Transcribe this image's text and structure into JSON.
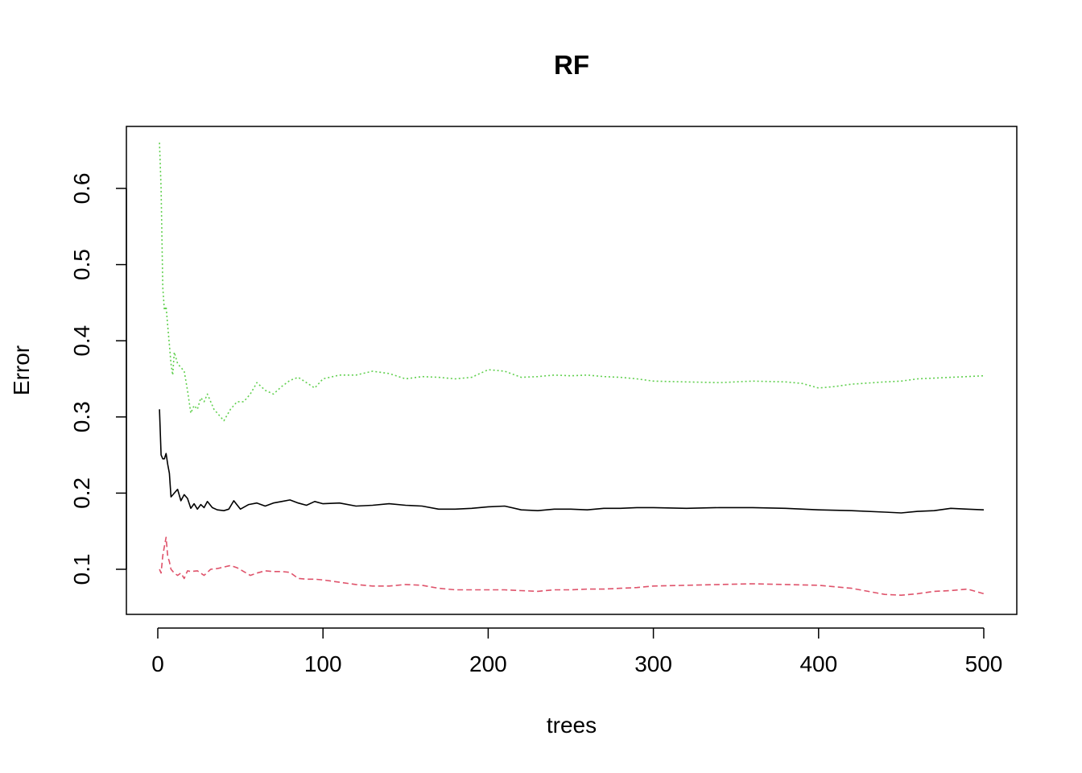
{
  "chart_data": {
    "type": "line",
    "title": "RF",
    "xlabel": "trees",
    "ylabel": "Error",
    "xlim": [
      0,
      500
    ],
    "ylim": [
      0.06,
      0.66
    ],
    "grid": false,
    "x_ticks": [
      "0",
      "100",
      "200",
      "300",
      "400",
      "500"
    ],
    "y_ticks": [
      "0.1",
      "0.2",
      "0.3",
      "0.4",
      "0.5",
      "0.6"
    ],
    "series": [
      {
        "key": "oob",
        "color": "#000000",
        "line_style": "solid",
        "points": [
          [
            1,
            0.31
          ],
          [
            2,
            0.25
          ],
          [
            3,
            0.245
          ],
          [
            4,
            0.245
          ],
          [
            5,
            0.252
          ],
          [
            6,
            0.238
          ],
          [
            7,
            0.226
          ],
          [
            8,
            0.195
          ],
          [
            10,
            0.2
          ],
          [
            12,
            0.205
          ],
          [
            14,
            0.19
          ],
          [
            16,
            0.198
          ],
          [
            18,
            0.193
          ],
          [
            20,
            0.18
          ],
          [
            22,
            0.186
          ],
          [
            24,
            0.179
          ],
          [
            26,
            0.185
          ],
          [
            28,
            0.181
          ],
          [
            30,
            0.189
          ],
          [
            33,
            0.181
          ],
          [
            36,
            0.178
          ],
          [
            40,
            0.177
          ],
          [
            43,
            0.179
          ],
          [
            46,
            0.19
          ],
          [
            50,
            0.179
          ],
          [
            55,
            0.185
          ],
          [
            60,
            0.187
          ],
          [
            65,
            0.183
          ],
          [
            70,
            0.187
          ],
          [
            75,
            0.189
          ],
          [
            80,
            0.191
          ],
          [
            85,
            0.187
          ],
          [
            90,
            0.184
          ],
          [
            95,
            0.189
          ],
          [
            100,
            0.186
          ],
          [
            110,
            0.187
          ],
          [
            120,
            0.183
          ],
          [
            130,
            0.184
          ],
          [
            140,
            0.186
          ],
          [
            150,
            0.184
          ],
          [
            160,
            0.183
          ],
          [
            170,
            0.179
          ],
          [
            180,
            0.179
          ],
          [
            190,
            0.18
          ],
          [
            200,
            0.182
          ],
          [
            210,
            0.183
          ],
          [
            220,
            0.178
          ],
          [
            230,
            0.177
          ],
          [
            240,
            0.179
          ],
          [
            250,
            0.179
          ],
          [
            260,
            0.178
          ],
          [
            270,
            0.18
          ],
          [
            280,
            0.18
          ],
          [
            290,
            0.181
          ],
          [
            300,
            0.181
          ],
          [
            320,
            0.18
          ],
          [
            340,
            0.181
          ],
          [
            360,
            0.181
          ],
          [
            380,
            0.18
          ],
          [
            400,
            0.178
          ],
          [
            420,
            0.177
          ],
          [
            440,
            0.175
          ],
          [
            450,
            0.174
          ],
          [
            460,
            0.176
          ],
          [
            470,
            0.177
          ],
          [
            480,
            0.18
          ],
          [
            490,
            0.179
          ],
          [
            500,
            0.178
          ]
        ]
      },
      {
        "key": "class1",
        "color": "#DF536B",
        "line_style": "dashed",
        "points": [
          [
            1,
            0.1
          ],
          [
            2,
            0.095
          ],
          [
            3,
            0.118
          ],
          [
            4,
            0.13
          ],
          [
            5,
            0.142
          ],
          [
            6,
            0.117
          ],
          [
            7,
            0.11
          ],
          [
            8,
            0.1
          ],
          [
            10,
            0.095
          ],
          [
            12,
            0.092
          ],
          [
            14,
            0.095
          ],
          [
            16,
            0.088
          ],
          [
            18,
            0.098
          ],
          [
            20,
            0.097
          ],
          [
            24,
            0.098
          ],
          [
            28,
            0.092
          ],
          [
            32,
            0.1
          ],
          [
            36,
            0.101
          ],
          [
            40,
            0.103
          ],
          [
            44,
            0.105
          ],
          [
            48,
            0.102
          ],
          [
            52,
            0.097
          ],
          [
            56,
            0.092
          ],
          [
            60,
            0.095
          ],
          [
            65,
            0.098
          ],
          [
            70,
            0.097
          ],
          [
            75,
            0.097
          ],
          [
            80,
            0.096
          ],
          [
            85,
            0.088
          ],
          [
            90,
            0.087
          ],
          [
            95,
            0.087
          ],
          [
            100,
            0.086
          ],
          [
            110,
            0.083
          ],
          [
            120,
            0.08
          ],
          [
            130,
            0.078
          ],
          [
            140,
            0.078
          ],
          [
            150,
            0.08
          ],
          [
            160,
            0.079
          ],
          [
            170,
            0.075
          ],
          [
            180,
            0.073
          ],
          [
            190,
            0.073
          ],
          [
            200,
            0.073
          ],
          [
            210,
            0.073
          ],
          [
            220,
            0.072
          ],
          [
            230,
            0.071
          ],
          [
            240,
            0.073
          ],
          [
            250,
            0.073
          ],
          [
            260,
            0.074
          ],
          [
            270,
            0.074
          ],
          [
            280,
            0.075
          ],
          [
            290,
            0.076
          ],
          [
            300,
            0.078
          ],
          [
            320,
            0.079
          ],
          [
            340,
            0.08
          ],
          [
            360,
            0.081
          ],
          [
            380,
            0.08
          ],
          [
            400,
            0.079
          ],
          [
            420,
            0.075
          ],
          [
            440,
            0.067
          ],
          [
            450,
            0.066
          ],
          [
            460,
            0.068
          ],
          [
            470,
            0.071
          ],
          [
            480,
            0.072
          ],
          [
            490,
            0.074
          ],
          [
            500,
            0.068
          ]
        ]
      },
      {
        "key": "class2",
        "color": "#61D04F",
        "line_style": "dotted",
        "points": [
          [
            1,
            0.66
          ],
          [
            2,
            0.6
          ],
          [
            3,
            0.47
          ],
          [
            4,
            0.44
          ],
          [
            5,
            0.445
          ],
          [
            6,
            0.42
          ],
          [
            7,
            0.395
          ],
          [
            8,
            0.37
          ],
          [
            9,
            0.355
          ],
          [
            10,
            0.385
          ],
          [
            12,
            0.37
          ],
          [
            14,
            0.365
          ],
          [
            16,
            0.36
          ],
          [
            18,
            0.335
          ],
          [
            20,
            0.305
          ],
          [
            22,
            0.315
          ],
          [
            24,
            0.31
          ],
          [
            26,
            0.325
          ],
          [
            28,
            0.32
          ],
          [
            30,
            0.33
          ],
          [
            34,
            0.31
          ],
          [
            38,
            0.3
          ],
          [
            40,
            0.295
          ],
          [
            44,
            0.31
          ],
          [
            48,
            0.32
          ],
          [
            52,
            0.32
          ],
          [
            56,
            0.33
          ],
          [
            60,
            0.345
          ],
          [
            65,
            0.335
          ],
          [
            70,
            0.33
          ],
          [
            75,
            0.34
          ],
          [
            80,
            0.348
          ],
          [
            85,
            0.352
          ],
          [
            90,
            0.345
          ],
          [
            95,
            0.338
          ],
          [
            100,
            0.35
          ],
          [
            110,
            0.355
          ],
          [
            120,
            0.355
          ],
          [
            130,
            0.36
          ],
          [
            140,
            0.357
          ],
          [
            150,
            0.35
          ],
          [
            160,
            0.353
          ],
          [
            170,
            0.352
          ],
          [
            180,
            0.35
          ],
          [
            190,
            0.352
          ],
          [
            200,
            0.362
          ],
          [
            210,
            0.36
          ],
          [
            220,
            0.352
          ],
          [
            230,
            0.353
          ],
          [
            240,
            0.355
          ],
          [
            250,
            0.354
          ],
          [
            260,
            0.355
          ],
          [
            270,
            0.353
          ],
          [
            280,
            0.352
          ],
          [
            290,
            0.35
          ],
          [
            300,
            0.347
          ],
          [
            320,
            0.346
          ],
          [
            340,
            0.345
          ],
          [
            360,
            0.347
          ],
          [
            380,
            0.346
          ],
          [
            390,
            0.344
          ],
          [
            400,
            0.338
          ],
          [
            410,
            0.34
          ],
          [
            420,
            0.343
          ],
          [
            440,
            0.346
          ],
          [
            450,
            0.347
          ],
          [
            460,
            0.35
          ],
          [
            470,
            0.351
          ],
          [
            480,
            0.352
          ],
          [
            490,
            0.353
          ],
          [
            500,
            0.354
          ]
        ]
      }
    ]
  }
}
